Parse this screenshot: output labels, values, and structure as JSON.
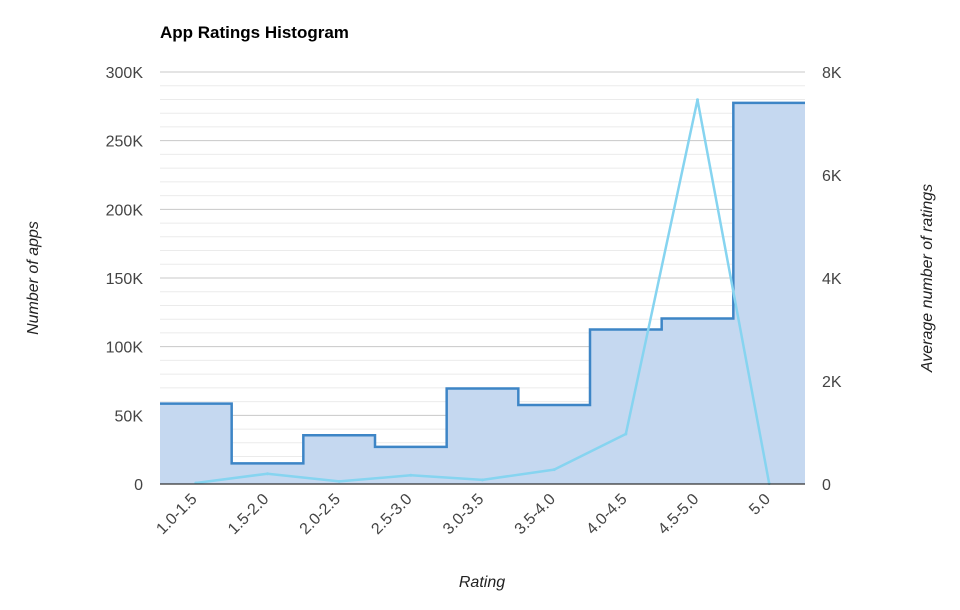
{
  "chart_data": {
    "type": "bar",
    "title": "App Ratings Histogram",
    "xlabel": "Rating",
    "ylabel": "Number of apps",
    "y2label": "Average number of ratings",
    "categories": [
      "1.0-1.5",
      "1.5-2.0",
      "2.0-2.5",
      "2.5-3.0",
      "3.0-3.5",
      "3.5-4.0",
      "4.0-4.5",
      "4.5-5.0",
      "5.0"
    ],
    "ylim": [
      0,
      300000
    ],
    "y2lim": [
      0,
      8000
    ],
    "yticks": [
      "0",
      "50K",
      "100K",
      "150K",
      "200K",
      "250K",
      "300K"
    ],
    "y2ticks": [
      "0",
      "2K",
      "4K",
      "6K",
      "8K"
    ],
    "series": [
      {
        "axis": "left",
        "render": "stepped-area",
        "values": [
          58500,
          15000,
          35500,
          27000,
          69500,
          57500,
          112500,
          120500,
          277500
        ]
      },
      {
        "axis": "right",
        "render": "line",
        "values": [
          20,
          200,
          50,
          170,
          80,
          280,
          970,
          7460,
          10
        ]
      }
    ],
    "grid": true,
    "legend": "none",
    "colors": {
      "area_fill": "#c5d8f0",
      "area_line": "#3d85c6",
      "line": "#86d4f0",
      "grid_major": "#c8c8c8",
      "grid_minor": "#ebebeb",
      "axis": "#333333"
    }
  }
}
